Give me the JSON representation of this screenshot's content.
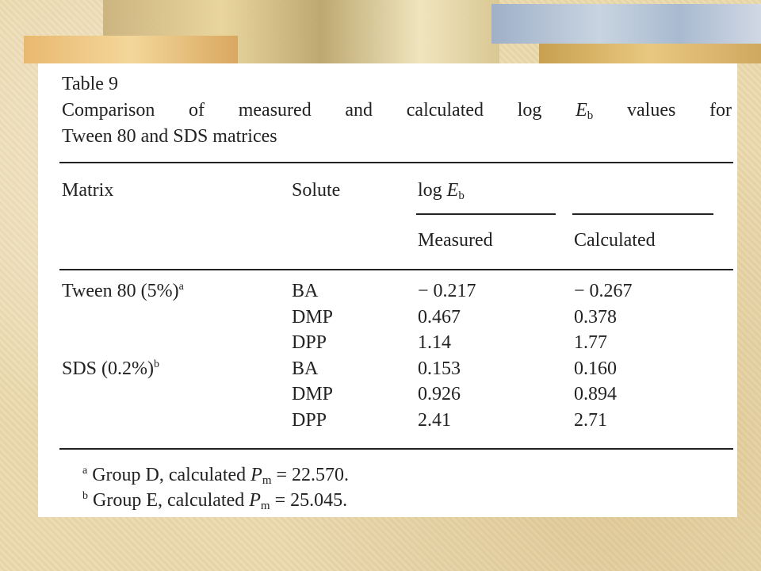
{
  "title": "Table 9",
  "caption": {
    "line1": {
      "before": "Comparison of measured and calculated log ",
      "var": "E",
      "sub": "b",
      "after": "values for"
    },
    "line2": "Tween 80 and SDS matrices"
  },
  "headers": {
    "matrix": "Matrix",
    "solute": "Solute",
    "group": {
      "text": "log ",
      "var": "E",
      "sub": "b"
    },
    "measured": "Measured",
    "calculated": "Calculated"
  },
  "rows": [
    {
      "matrix": "Tween 80 (5%)",
      "note": "a",
      "solute": "BA",
      "measured": "− 0.217",
      "calculated": "− 0.267"
    },
    {
      "solute": "DMP",
      "measured": "0.467",
      "calculated": "0.378"
    },
    {
      "solute": "DPP",
      "measured": "1.14",
      "calculated": "1.77"
    },
    {
      "matrix": "SDS (0.2%)",
      "note": "b",
      "solute": "BA",
      "measured": "0.153",
      "calculated": "0.160"
    },
    {
      "solute": "DMP",
      "measured": "0.926",
      "calculated": "0.894"
    },
    {
      "solute": "DPP",
      "measured": "2.41",
      "calculated": "2.71"
    }
  ],
  "footnotes": [
    {
      "mark": "a",
      "text": " Group D, calculated ",
      "var": "P",
      "sub": "m",
      "after": " = 22.570."
    },
    {
      "mark": "b",
      "text": " Group E, calculated ",
      "var": "P",
      "sub": "m",
      "after": " = 25.045."
    }
  ]
}
